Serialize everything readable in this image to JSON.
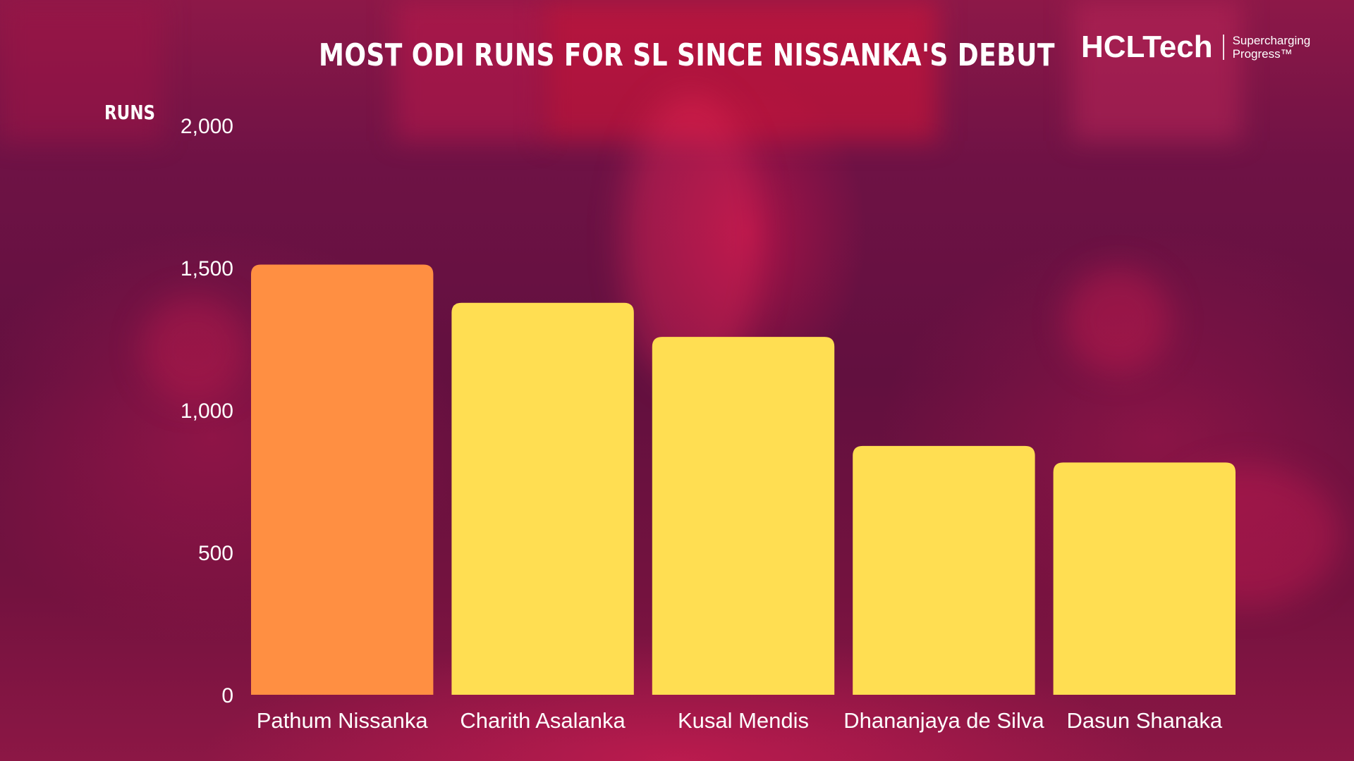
{
  "header": {
    "title": "MOST ODI RUNS FOR SL SINCE NISSANKA'S DEBUT",
    "logo_name": "HCLTech",
    "logo_tagline_line1": "Supercharging",
    "logo_tagline_line2": "Progress™"
  },
  "chart_data": {
    "type": "bar",
    "title": "MOST ODI RUNS FOR SL SINCE NISSANKA'S DEBUT",
    "ylabel": "RUNS",
    "xlabel": "",
    "categories": [
      "Pathum Nissanka",
      "Charith Asalanka",
      "Kusal Mendis",
      "Dhananjaya de Silva",
      "Dasun Shanaka"
    ],
    "values": [
      1511,
      1377,
      1257,
      874,
      816
    ],
    "ylim": [
      0,
      2000
    ],
    "yticks": [
      0,
      500,
      1000,
      1500,
      2000
    ],
    "ytick_labels": [
      "0",
      "500",
      "1,000",
      "1,500",
      "2,000"
    ],
    "grid": false,
    "legend": "none",
    "colors": {
      "highlight": "#ff8f42",
      "default": "#ffde52"
    },
    "highlight_index": 0
  }
}
